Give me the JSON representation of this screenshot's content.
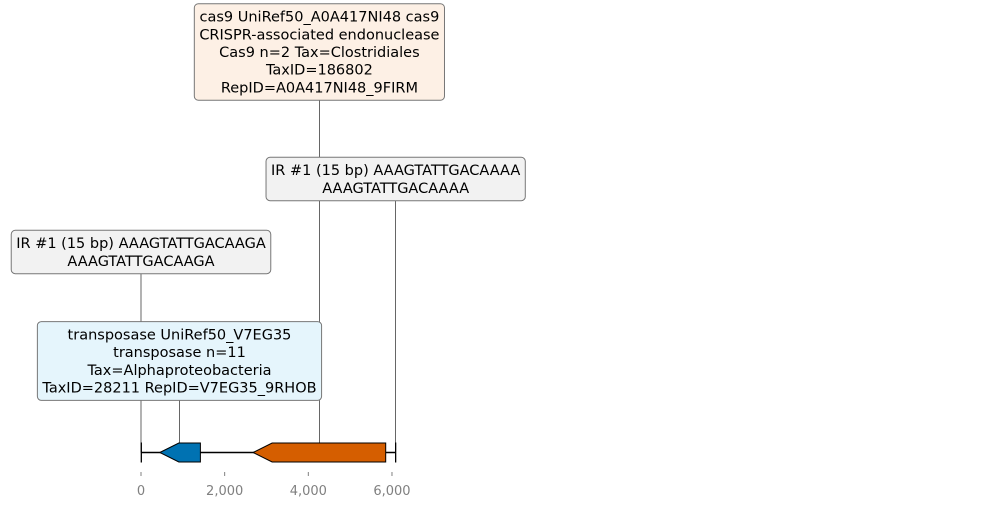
{
  "chart_data": {
    "type": "genome-map",
    "xlim": [
      0,
      6120
    ],
    "axis": {
      "ticks": [
        0,
        2000,
        4000,
        6000
      ],
      "tick_labels": [
        "0",
        "2,000",
        "4,000",
        "6,000"
      ]
    },
    "features": [
      {
        "id": "transposase",
        "start": 450,
        "end": 1420,
        "strand": -1,
        "color": "#0072b2",
        "label_lines": [
          "transposase UniRef50_V7EG35",
          "transposase n=11",
          "Tax=Alphaproteobacteria",
          "TaxID=28211 RepID=V7EG35_9RHOB"
        ],
        "box_color": "#e5f5fc",
        "anchor_x": 920,
        "level": 0
      },
      {
        "id": "cas9",
        "start": 2680,
        "end": 5850,
        "strand": -1,
        "color": "#d55e00",
        "label_lines": [
          "cas9 UniRef50_A0A417NI48 cas9",
          "CRISPR-associated endonuclease",
          "Cas9 n=2 Tax=Clostridiales",
          "TaxID=186802",
          "RepID=A0A417NI48_9FIRM"
        ],
        "box_color": "#fdf0e5",
        "anchor_x": 4265,
        "level": 3
      },
      {
        "id": "ir-left",
        "start": 0,
        "end": 15,
        "strand": 0,
        "color": "#000000",
        "label_lines": [
          "IR #1 (15 bp) AAAGTATTGACAAGA",
          "AAAGTATTGACAAGA"
        ],
        "box_color": "#f2f2f2",
        "anchor_x": 0,
        "level": 1
      },
      {
        "id": "ir-right",
        "start": 6080,
        "end": 6095,
        "strand": 0,
        "color": "#000000",
        "label_lines": [
          "IR #1 (15 bp) AAAGTATTGACAAAA",
          "AAAGTATTGACAAAA"
        ],
        "box_color": "#f2f2f2",
        "anchor_x": 6088,
        "level": 2
      }
    ]
  }
}
